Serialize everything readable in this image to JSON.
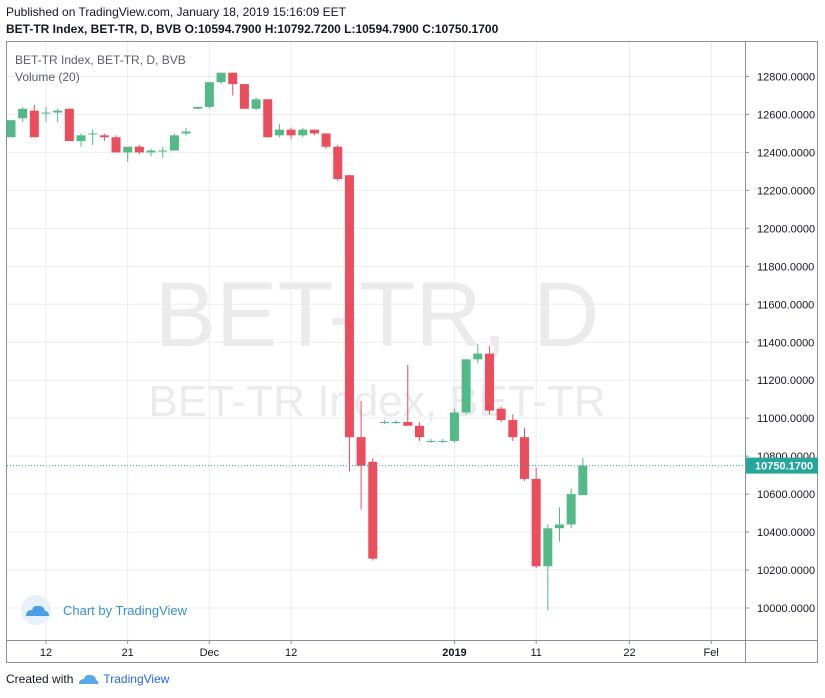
{
  "header": {
    "published": "Published on TradingView.com, January 18, 2019 15:16:09 EET",
    "ohlc": "BET-TR Index, BET-TR, D, BVB O:10594.7900 H:10792.7200 L:10594.7900 C:10750.1700"
  },
  "legend": {
    "symbol": "BET-TR Index, BET-TR, D, BVB",
    "volume": "Volume (20)"
  },
  "watermark": {
    "big": "BET-TR, D",
    "small": "BET-TR Index, BET-TR"
  },
  "logo": {
    "text": "Chart by TradingView"
  },
  "footer": {
    "created": "Created with",
    "brand": "TradingView"
  },
  "colors": {
    "up": "#53b987",
    "down": "#eb4d5c",
    "last": "#26a69a",
    "grid": "#e9edf2",
    "axis_text": "#131722"
  },
  "chart_data": {
    "type": "candlestick",
    "y_ticks": [
      "12800.0000",
      "12600.0000",
      "12400.0000",
      "12200.0000",
      "12000.0000",
      "11800.0000",
      "11600.0000",
      "11400.0000",
      "11200.0000",
      "11000.0000",
      "10800.0000",
      "10600.0000",
      "10400.0000",
      "10200.0000",
      "10000.0000"
    ],
    "y_values": [
      12800,
      12600,
      12400,
      12200,
      12000,
      11800,
      11600,
      11400,
      11200,
      11000,
      10800,
      10600,
      10400,
      10200,
      10000
    ],
    "ylim": [
      9940,
      12880
    ],
    "x_ticks": [
      "12",
      "21",
      "Dec",
      "12",
      "2019",
      "11",
      "22",
      "Fel"
    ],
    "x_tick_index": [
      3,
      10,
      17,
      24,
      38,
      45,
      53,
      60
    ],
    "last_price": 10750.17,
    "last_label": "10750.1700",
    "candles": [
      {
        "o": 12480,
        "h": 12570,
        "l": 12480,
        "c": 12570
      },
      {
        "o": 12580,
        "h": 12640,
        "l": 12560,
        "c": 12630
      },
      {
        "o": 12620,
        "h": 12650,
        "l": 12480,
        "c": 12480
      },
      {
        "o": 12610,
        "h": 12640,
        "l": 12560,
        "c": 12610
      },
      {
        "o": 12610,
        "h": 12630,
        "l": 12560,
        "c": 12620
      },
      {
        "o": 12630,
        "h": 12630,
        "l": 12460,
        "c": 12460
      },
      {
        "o": 12460,
        "h": 12500,
        "l": 12430,
        "c": 12490
      },
      {
        "o": 12500,
        "h": 12520,
        "l": 12440,
        "c": 12500
      },
      {
        "o": 12490,
        "h": 12500,
        "l": 12460,
        "c": 12480
      },
      {
        "o": 12480,
        "h": 12490,
        "l": 12400,
        "c": 12400
      },
      {
        "o": 12400,
        "h": 12430,
        "l": 12350,
        "c": 12430
      },
      {
        "o": 12430,
        "h": 12440,
        "l": 12390,
        "c": 12400
      },
      {
        "o": 12400,
        "h": 12420,
        "l": 12380,
        "c": 12410
      },
      {
        "o": 12410,
        "h": 12430,
        "l": 12370,
        "c": 12410
      },
      {
        "o": 12410,
        "h": 12500,
        "l": 12410,
        "c": 12490
      },
      {
        "o": 12500,
        "h": 12530,
        "l": 12490,
        "c": 12510
      },
      {
        "o": 12630,
        "h": 12640,
        "l": 12630,
        "c": 12640
      },
      {
        "o": 12640,
        "h": 12770,
        "l": 12630,
        "c": 12770
      },
      {
        "o": 12770,
        "h": 12820,
        "l": 12760,
        "c": 12820
      },
      {
        "o": 12820,
        "h": 12820,
        "l": 12700,
        "c": 12760
      },
      {
        "o": 12760,
        "h": 12760,
        "l": 12630,
        "c": 12630
      },
      {
        "o": 12630,
        "h": 12690,
        "l": 12620,
        "c": 12680
      },
      {
        "o": 12680,
        "h": 12680,
        "l": 12480,
        "c": 12480
      },
      {
        "o": 12490,
        "h": 12550,
        "l": 12480,
        "c": 12520
      },
      {
        "o": 12520,
        "h": 12530,
        "l": 12470,
        "c": 12490
      },
      {
        "o": 12490,
        "h": 12530,
        "l": 12480,
        "c": 12520
      },
      {
        "o": 12520,
        "h": 12520,
        "l": 12490,
        "c": 12500
      },
      {
        "o": 12500,
        "h": 12500,
        "l": 12420,
        "c": 12430
      },
      {
        "o": 12430,
        "h": 12440,
        "l": 12250,
        "c": 12260
      },
      {
        "o": 12280,
        "h": 12280,
        "l": 10720,
        "c": 10900
      },
      {
        "o": 10900,
        "h": 11090,
        "l": 10520,
        "c": 10750
      },
      {
        "o": 10770,
        "h": 10790,
        "l": 10250,
        "c": 10260
      },
      {
        "o": 10980,
        "h": 10990,
        "l": 10970,
        "c": 10980
      },
      {
        "o": 10980,
        "h": 10990,
        "l": 10970,
        "c": 10980
      },
      {
        "o": 10980,
        "h": 11280,
        "l": 10970,
        "c": 10960
      },
      {
        "o": 10960,
        "h": 10980,
        "l": 10880,
        "c": 10900
      },
      {
        "o": 10880,
        "h": 10890,
        "l": 10870,
        "c": 10880
      },
      {
        "o": 10880,
        "h": 10890,
        "l": 10870,
        "c": 10880
      },
      {
        "o": 10880,
        "h": 11050,
        "l": 10870,
        "c": 11030
      },
      {
        "o": 11030,
        "h": 11310,
        "l": 11020,
        "c": 11310
      },
      {
        "o": 11310,
        "h": 11390,
        "l": 11290,
        "c": 11340
      },
      {
        "o": 11340,
        "h": 11380,
        "l": 11020,
        "c": 11040
      },
      {
        "o": 11050,
        "h": 11060,
        "l": 10980,
        "c": 10990
      },
      {
        "o": 10990,
        "h": 11020,
        "l": 10880,
        "c": 10900
      },
      {
        "o": 10900,
        "h": 10950,
        "l": 10670,
        "c": 10680
      },
      {
        "o": 10680,
        "h": 10740,
        "l": 10210,
        "c": 10220
      },
      {
        "o": 10220,
        "h": 10440,
        "l": 9990,
        "c": 10420
      },
      {
        "o": 10420,
        "h": 10530,
        "l": 10350,
        "c": 10440
      },
      {
        "o": 10440,
        "h": 10630,
        "l": 10420,
        "c": 10600
      },
      {
        "o": 10594.79,
        "h": 10792.72,
        "l": 10594.79,
        "c": 10750.17
      }
    ]
  }
}
